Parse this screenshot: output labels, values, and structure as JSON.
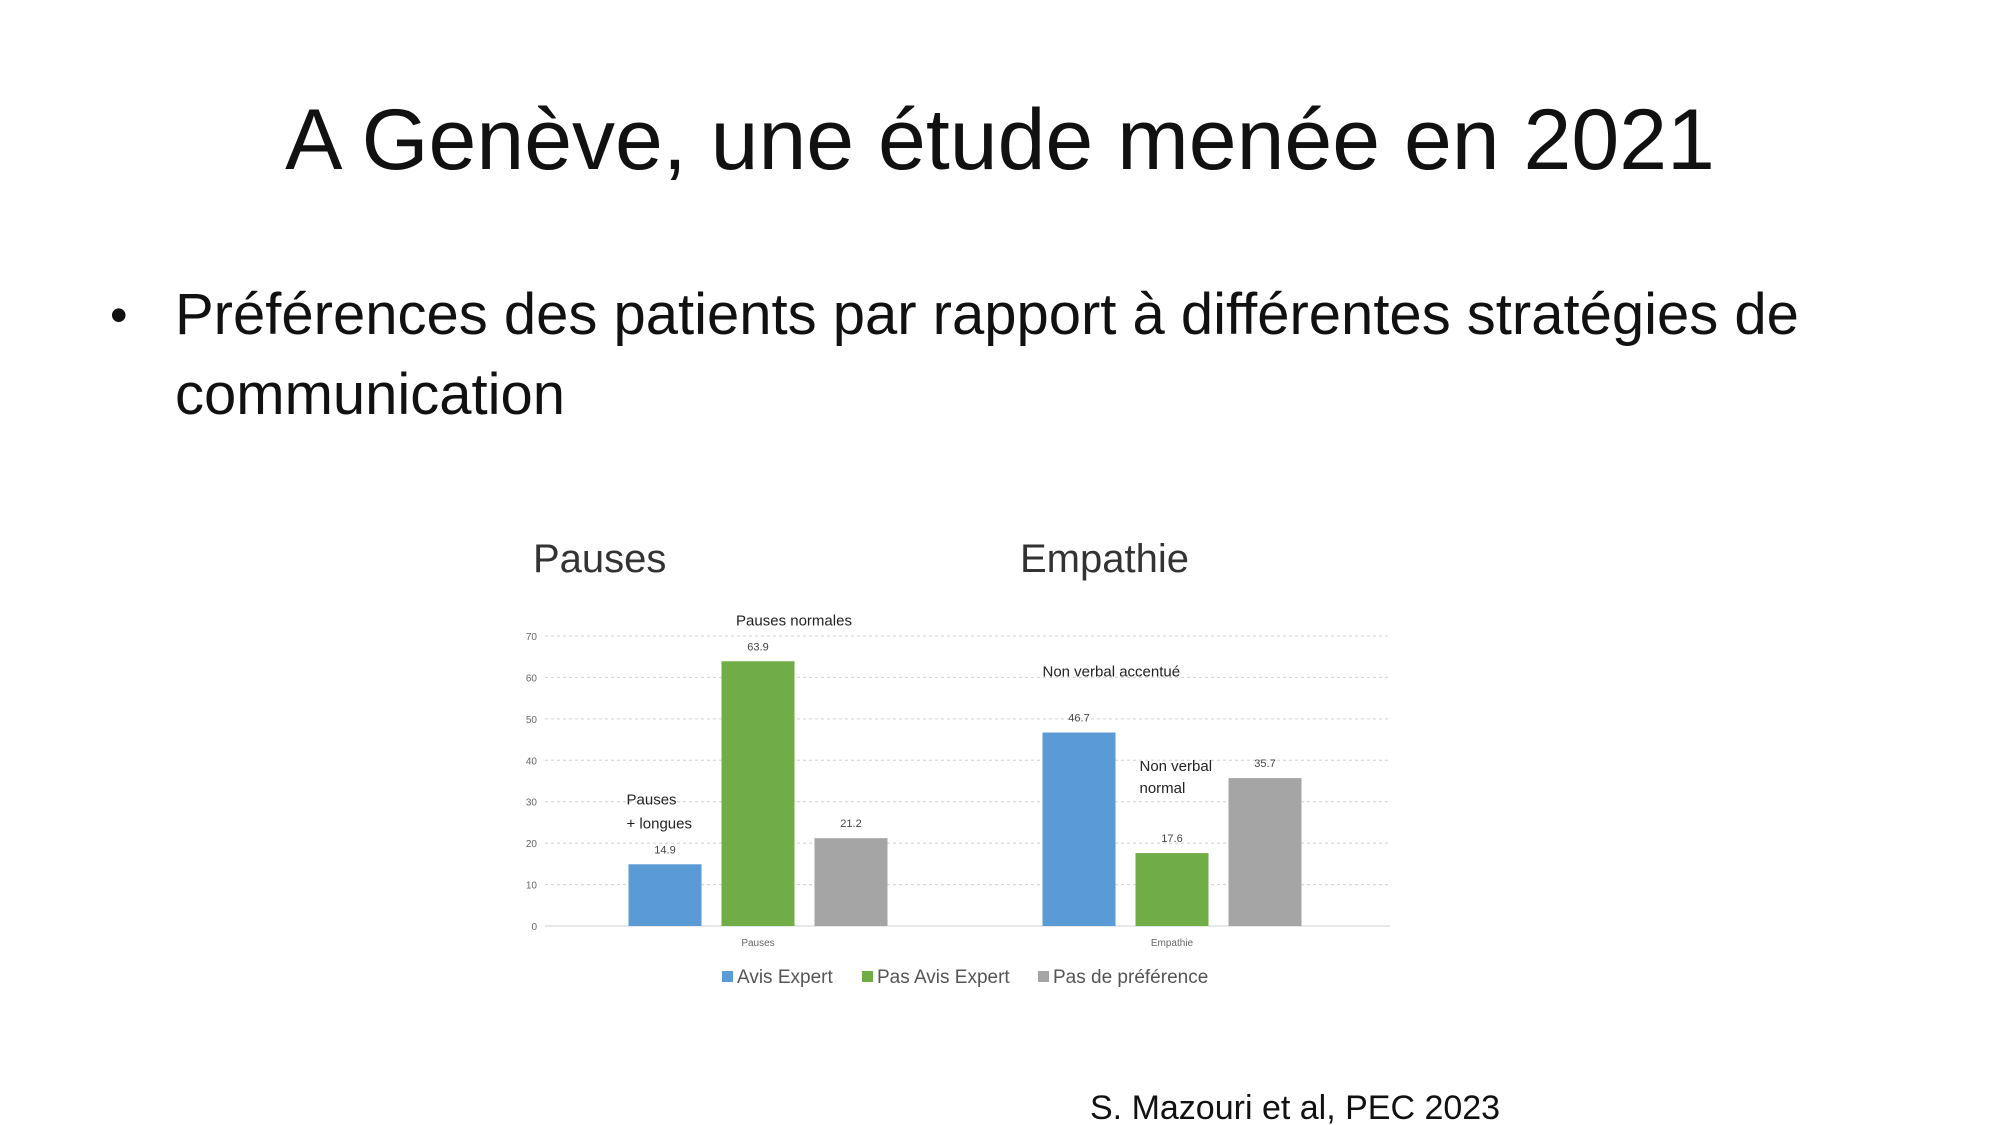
{
  "slide": {
    "title": "A Genève, une étude menée en 2021",
    "bullet_symbol": "•",
    "bullet": "Préférences des patients par rapport à différentes stratégies de communication",
    "citation": "S. Mazouri et al, PEC 2023"
  },
  "chart_data": {
    "type": "bar",
    "panel_titles": [
      "Pauses",
      "Empathie"
    ],
    "categories": [
      "Pauses",
      "Empathie"
    ],
    "series": [
      {
        "name": "Avis Expert",
        "color": "#5b9bd5",
        "values": [
          14.9,
          46.7
        ]
      },
      {
        "name": "Pas Avis Expert",
        "color": "#70ad47",
        "values": [
          63.9,
          17.6
        ]
      },
      {
        "name": "Pas de préférence",
        "color": "#a5a5a5",
        "values": [
          21.2,
          35.7
        ]
      }
    ],
    "ylim": [
      0,
      70
    ],
    "yticks": [
      0,
      10,
      20,
      30,
      40,
      50,
      60,
      70
    ],
    "grid": true,
    "legend": "bottom",
    "annotations": [
      {
        "text": "Pauses normales",
        "category": 0,
        "series": 1
      },
      {
        "text": "Pauses",
        "category": 0,
        "series": 0,
        "line": 1
      },
      {
        "text": "+ longues",
        "category": 0,
        "series": 0,
        "line": 2
      },
      {
        "text": "Non verbal accentué",
        "category": 1,
        "series": 0
      },
      {
        "text": "Non verbal",
        "category": 1,
        "series": 1,
        "line": 1
      },
      {
        "text": "normal",
        "category": 1,
        "series": 1,
        "line": 2
      }
    ]
  }
}
